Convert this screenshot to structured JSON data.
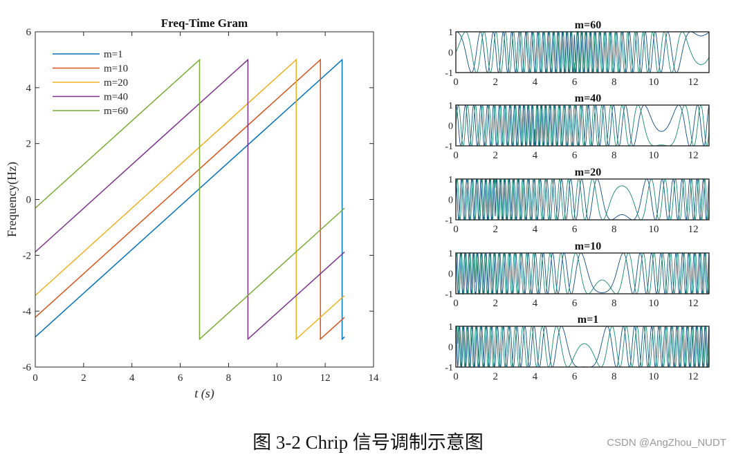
{
  "figure": {
    "caption": "图  3-2 Chrip 信号调制示意图",
    "watermark": "CSDN @AngZhou_NUDT"
  },
  "colors": {
    "m1": "#0072BD",
    "m10": "#D95319",
    "m20": "#EDB120",
    "m40": "#7E2F8E",
    "m60": "#77AC30",
    "wave_i": "#0d4a86",
    "wave_q": "#128a6e"
  },
  "chart_data": [
    {
      "type": "line",
      "title": "Freq-Time Gram",
      "xlabel": "t (s)",
      "ylabel": "Frequency(Hz)",
      "xlim": [
        0,
        14
      ],
      "ylim": [
        -6,
        6
      ],
      "xticks": [
        "0",
        "2",
        "4",
        "6",
        "8",
        "10",
        "12",
        "14"
      ],
      "yticks": [
        "6",
        "4",
        "2",
        "0",
        "-2",
        "-4",
        "-6"
      ],
      "legend_position": "top-left",
      "series": [
        {
          "name": "m=1",
          "color_key": "m1",
          "x": [
            0,
            12.7,
            12.7,
            12.8
          ],
          "y": [
            -4.92,
            5.0,
            -5.0,
            -4.92
          ]
        },
        {
          "name": "m=10",
          "color_key": "m10",
          "x": [
            0,
            11.8,
            11.8,
            12.8
          ],
          "y": [
            -4.22,
            5.0,
            -5.0,
            -4.22
          ]
        },
        {
          "name": "m=20",
          "color_key": "m20",
          "x": [
            0,
            10.8,
            10.8,
            12.8
          ],
          "y": [
            -3.44,
            5.0,
            -5.0,
            -3.44
          ]
        },
        {
          "name": "m=40",
          "color_key": "m40",
          "x": [
            0,
            8.8,
            8.8,
            12.8
          ],
          "y": [
            -1.88,
            5.0,
            -5.0,
            -1.88
          ]
        },
        {
          "name": "m=60",
          "color_key": "m60",
          "x": [
            0,
            6.8,
            6.8,
            12.8
          ],
          "y": [
            -0.31,
            5.0,
            -5.0,
            -0.31
          ]
        }
      ]
    },
    {
      "type": "line",
      "panels": [
        {
          "title": "m=60",
          "m": 60
        },
        {
          "title": "m=40",
          "m": 40
        },
        {
          "title": "m=20",
          "m": 20
        },
        {
          "title": "m=10",
          "m": 10
        },
        {
          "title": "m=1",
          "m": 1
        }
      ],
      "xlim": [
        0,
        12.8
      ],
      "ylim": [
        -1,
        1
      ],
      "xticks": [
        "0",
        "2",
        "4",
        "6",
        "8",
        "10",
        "12"
      ],
      "yticks": [
        "1",
        "0",
        "-1"
      ],
      "signal": {
        "period_s": 12.8,
        "f_min_hz": -5,
        "f_max_hz": 5,
        "channels": [
          "I",
          "Q"
        ]
      }
    }
  ]
}
